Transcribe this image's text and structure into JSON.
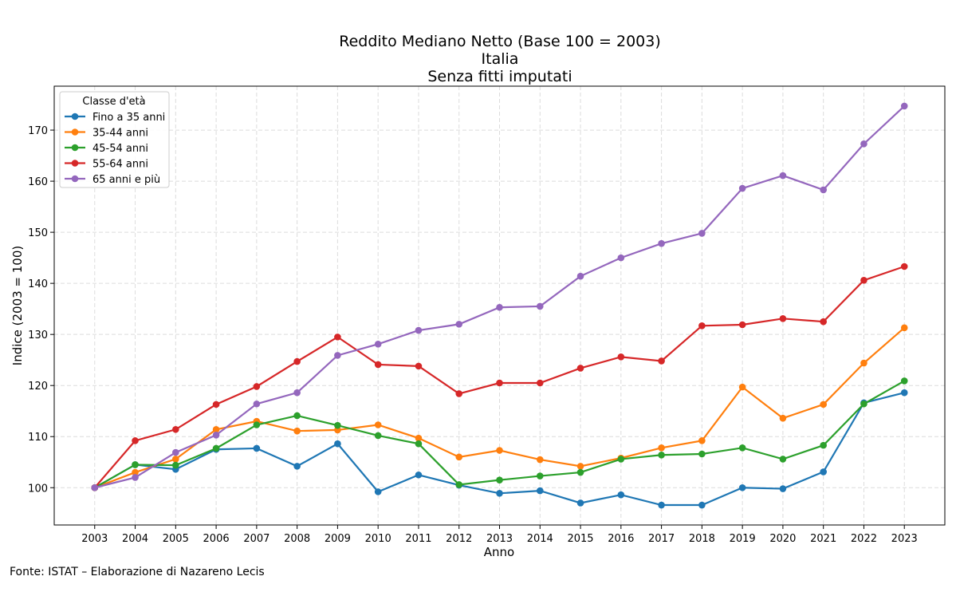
{
  "chart_data": {
    "type": "line",
    "title": [
      "Reddito Mediano Netto (Base 100 = 2003)",
      "Italia",
      "Senza fitti imputati"
    ],
    "xlabel": "Anno",
    "ylabel": "Indice (2003 = 100)",
    "xlim": [
      2002,
      2024
    ],
    "ylim": [
      92.7,
      178.6
    ],
    "yticks": [
      100,
      110,
      120,
      130,
      140,
      150,
      160,
      170
    ],
    "grid": true,
    "legend": {
      "title": "Classe d'età",
      "placement": "top-left"
    },
    "x": [
      2003,
      2004,
      2005,
      2006,
      2007,
      2008,
      2009,
      2010,
      2011,
      2012,
      2013,
      2014,
      2015,
      2016,
      2017,
      2018,
      2019,
      2020,
      2021,
      2022,
      2023
    ],
    "series": [
      {
        "name": "Fino a 35 anni",
        "color": "#1f77b4",
        "values": [
          100,
          104.5,
          103.6,
          107.5,
          107.7,
          104.2,
          108.6,
          99.2,
          102.5,
          100.5,
          98.9,
          99.4,
          97.0,
          98.6,
          96.6,
          96.6,
          100.0,
          99.8,
          103.1,
          116.6,
          118.6
        ]
      },
      {
        "name": "35-44 anni",
        "color": "#ff7f0e",
        "values": [
          100,
          103.0,
          105.6,
          111.4,
          113.0,
          111.1,
          111.3,
          112.3,
          109.7,
          106.0,
          107.3,
          105.5,
          104.2,
          105.8,
          107.8,
          109.2,
          119.7,
          113.6,
          116.3,
          124.4,
          131.3
        ]
      },
      {
        "name": "45-54 anni",
        "color": "#2ca02c",
        "values": [
          100,
          104.5,
          104.4,
          107.7,
          112.3,
          114.1,
          112.2,
          110.2,
          108.6,
          100.6,
          101.5,
          102.3,
          103.0,
          105.6,
          106.4,
          106.6,
          107.8,
          105.6,
          108.3,
          116.4,
          120.9
        ]
      },
      {
        "name": "55-64 anni",
        "color": "#d62728",
        "values": [
          100,
          109.2,
          111.4,
          116.3,
          119.8,
          124.7,
          129.5,
          124.1,
          123.8,
          118.4,
          120.5,
          120.5,
          123.4,
          125.6,
          124.8,
          131.7,
          131.9,
          133.1,
          132.5,
          140.6,
          143.3
        ]
      },
      {
        "name": "65 anni e più",
        "color": "#9467bd",
        "values": [
          100,
          102.0,
          106.9,
          110.3,
          116.4,
          118.6,
          125.9,
          128.1,
          130.8,
          132.0,
          135.3,
          135.5,
          141.4,
          145.0,
          147.8,
          149.8,
          158.6,
          161.1,
          158.3,
          167.3,
          174.7
        ]
      }
    ]
  },
  "footer": "Fonte: ISTAT – Elaborazione di Nazareno Lecis"
}
